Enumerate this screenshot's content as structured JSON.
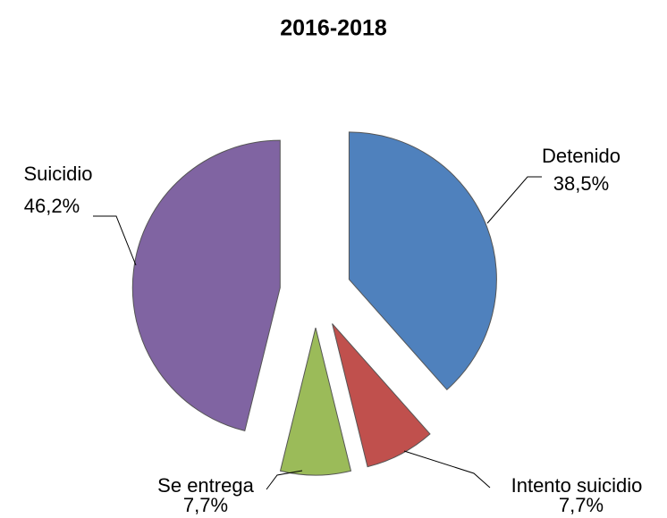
{
  "chart_data": {
    "type": "pie",
    "title": "2016-2018",
    "categories": [
      "Detenido",
      "Intento suicidio",
      "Se entrega",
      "Suicidio"
    ],
    "values": [
      38.5,
      7.7,
      7.7,
      46.2
    ],
    "value_labels": [
      "38,5%",
      "7,7%",
      "7,7%",
      "46,2%"
    ],
    "colors": [
      "#4f81bd",
      "#c0504d",
      "#9bbb59",
      "#8064a2"
    ]
  }
}
